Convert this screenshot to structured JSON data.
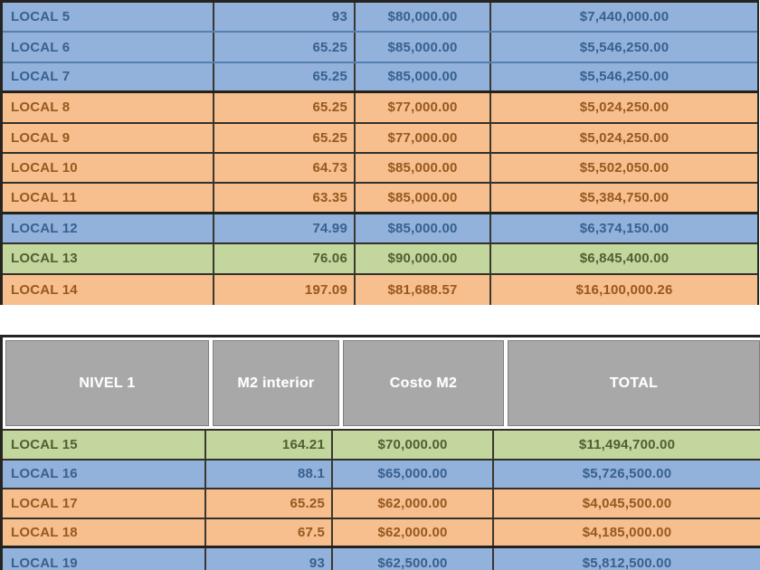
{
  "colors": {
    "row_blue_bg": "#92B1DB",
    "row_blue_text": "#38618f",
    "row_orange_bg": "#F7BE8E",
    "row_orange_text": "#96591f",
    "row_green_bg": "#C2D69D",
    "row_green_text": "#4f6033",
    "header_bg": "#a8a8a8",
    "header_text": "#ffffff",
    "grid_border": "#262420"
  },
  "upper_table": {
    "rows": [
      {
        "label": "LOCAL 5",
        "m2": "93",
        "costo_m2": "$80,000.00",
        "total": "$7,440,000.00",
        "color": "blue",
        "sep": "tint"
      },
      {
        "label": "LOCAL 6",
        "m2": "65.25",
        "costo_m2": "$85,000.00",
        "total": "$5,546,250.00",
        "color": "blue",
        "sep": "tint"
      },
      {
        "label": "LOCAL 7",
        "m2": "65.25",
        "costo_m2": "$85,000.00",
        "total": "$5,546,250.00",
        "color": "blue",
        "sep": "thick"
      },
      {
        "label": "LOCAL 8",
        "m2": "65.25",
        "costo_m2": "$77,000.00",
        "total": "$5,024,250.00",
        "color": "orange",
        "sep": "dark"
      },
      {
        "label": "LOCAL 9",
        "m2": "65.25",
        "costo_m2": "$77,000.00",
        "total": "$5,024,250.00",
        "color": "orange",
        "sep": "dark"
      },
      {
        "label": "LOCAL 10",
        "m2": "64.73",
        "costo_m2": "$85,000.00",
        "total": "$5,502,050.00",
        "color": "orange",
        "sep": "dark"
      },
      {
        "label": "LOCAL 11",
        "m2": "63.35",
        "costo_m2": "$85,000.00",
        "total": "$5,384,750.00",
        "color": "orange",
        "sep": "thick"
      },
      {
        "label": "LOCAL 12",
        "m2": "74.99",
        "costo_m2": "$85,000.00",
        "total": "$6,374,150.00",
        "color": "blue",
        "sep": "dark"
      },
      {
        "label": "LOCAL 13",
        "m2": "76.06",
        "costo_m2": "$90,000.00",
        "total": "$6,845,400.00",
        "color": "green",
        "sep": "dark"
      },
      {
        "label": "LOCAL 14",
        "m2": "197.09",
        "costo_m2": "$81,688.57",
        "total": "$16,100,000.26",
        "color": "orange",
        "sep": "dark"
      }
    ]
  },
  "lower_table": {
    "header": {
      "nivel": "NIVEL 1",
      "m2": "M2 interior",
      "costo": "Costo M2",
      "total": "TOTAL"
    },
    "rows": [
      {
        "label": "LOCAL 15",
        "m2": "164.21",
        "costo_m2": "$70,000.00",
        "total": "$11,494,700.00",
        "color": "green",
        "sep": "dark"
      },
      {
        "label": "LOCAL 16",
        "m2": "88.1",
        "costo_m2": "$65,000.00",
        "total": "$5,726,500.00",
        "color": "blue",
        "sep": "dark"
      },
      {
        "label": "LOCAL 17",
        "m2": "65.25",
        "costo_m2": "$62,000.00",
        "total": "$4,045,500.00",
        "color": "orange",
        "sep": "dark"
      },
      {
        "label": "LOCAL 18",
        "m2": "67.5",
        "costo_m2": "$62,000.00",
        "total": "$4,185,000.00",
        "color": "orange",
        "sep": "thick"
      },
      {
        "label": "LOCAL 19",
        "m2": "93",
        "costo_m2": "$62,500.00",
        "total": "$5,812,500.00",
        "color": "blue",
        "sep": "dark"
      }
    ]
  }
}
